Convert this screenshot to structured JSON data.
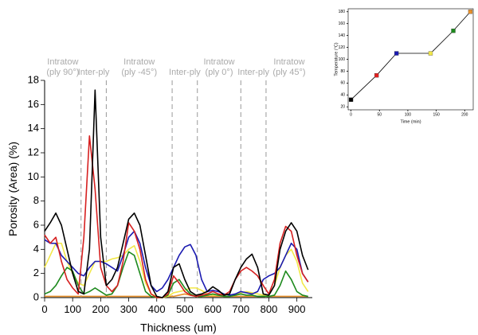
{
  "chart_data": [
    {
      "type": "line",
      "xlabel": "Thickness (um)",
      "ylabel": "Porosity (Area) (%)",
      "xlim": [
        0,
        955
      ],
      "ylim": [
        0,
        18
      ],
      "xticks": [
        0,
        100,
        200,
        300,
        400,
        500,
        600,
        700,
        800,
        900
      ],
      "yticks": [
        0,
        2,
        4,
        6,
        8,
        10,
        12,
        14,
        16,
        18
      ],
      "boundaries": [
        130,
        220,
        455,
        545,
        700,
        790
      ],
      "regions": [
        [
          "Intratow",
          "(ply 90°)"
        ],
        [
          "Inter-ply"
        ],
        [
          "Intratow",
          "(ply -45°)"
        ],
        [
          "Inter-ply"
        ],
        [
          "Intratow",
          "(ply 0°)"
        ],
        [
          "Inter-ply"
        ],
        [
          "Intratow",
          "(ply 45°)"
        ]
      ],
      "x": [
        0,
        20,
        40,
        60,
        80,
        100,
        120,
        140,
        160,
        180,
        200,
        220,
        240,
        260,
        280,
        300,
        320,
        340,
        360,
        380,
        400,
        420,
        440,
        460,
        480,
        500,
        520,
        540,
        560,
        580,
        600,
        620,
        640,
        660,
        680,
        700,
        720,
        740,
        760,
        780,
        800,
        820,
        840,
        860,
        880,
        900,
        920,
        940
      ],
      "series": [
        {
          "color": "#e8902a",
          "values": [
            0.1,
            0.1,
            0.1,
            0.1,
            0.1,
            0.1,
            0.1,
            0.1,
            0.1,
            0.1,
            0.1,
            0.1,
            0.1,
            0.1,
            0.1,
            0.1,
            0.1,
            0.1,
            0.1,
            0.1,
            0,
            0,
            0.1,
            0.1,
            0.2,
            0.3,
            0.2,
            0.1,
            0.1,
            0.1,
            0.1,
            0.1,
            0.1,
            0.1,
            0.1,
            0.1,
            0.1,
            0.1,
            0.1,
            0.1,
            0.1,
            0.1,
            0.1,
            0.1,
            0.1,
            0.1,
            0.1,
            0.1
          ]
        },
        {
          "color": "#f2e84a",
          "values": [
            2.5,
            3.5,
            4.5,
            4.5,
            3.0,
            2.0,
            1.2,
            1.0,
            2.0,
            3.0,
            3.0,
            3.0,
            3.2,
            3.3,
            3.5,
            4.0,
            4.3,
            3.0,
            1.2,
            0.3,
            0.1,
            0,
            0.1,
            0.4,
            0.5,
            0.6,
            0.8,
            0.8,
            0.6,
            0.3,
            0.2,
            0.2,
            0.1,
            0.1,
            0.2,
            0.4,
            0.5,
            0.4,
            0.3,
            0.2,
            0.2,
            1.0,
            2.5,
            3.5,
            4.0,
            3.0,
            1.2,
            0.5
          ]
        },
        {
          "color": "#1e8a1e",
          "values": [
            0.3,
            0.5,
            1.0,
            1.8,
            2.5,
            2.2,
            1.0,
            0.3,
            0.5,
            0.8,
            0.5,
            0.2,
            0.3,
            1.0,
            2.5,
            3.8,
            3.5,
            2.0,
            0.5,
            0.1,
            0,
            0,
            0.2,
            1.2,
            1.5,
            0.8,
            0.3,
            0.1,
            0.1,
            0.2,
            0.3,
            0.2,
            0.1,
            0.1,
            0.2,
            0.3,
            0.2,
            0.2,
            0.1,
            0.1,
            0.1,
            0.2,
            1.0,
            2.2,
            1.5,
            0.5,
            0.2,
            0.1
          ]
        },
        {
          "color": "#1a1ab0",
          "values": [
            4.8,
            4.5,
            4.5,
            3.5,
            3.0,
            2.5,
            2.0,
            1.8,
            2.5,
            3.0,
            3.0,
            2.8,
            2.5,
            2.2,
            3.5,
            5.0,
            5.5,
            4.5,
            2.5,
            1.0,
            0.5,
            0.8,
            1.5,
            2.5,
            3.5,
            4.2,
            4.4,
            3.5,
            1.5,
            0.5,
            0.6,
            0.5,
            0.3,
            0.2,
            0.3,
            0.5,
            0.4,
            0.3,
            0.5,
            1.5,
            1.8,
            2.0,
            2.5,
            3.5,
            4.5,
            4.0,
            2.0,
            1.3
          ]
        },
        {
          "color": "#d62020",
          "values": [
            5.2,
            4.5,
            5.0,
            3.0,
            1.5,
            0.8,
            0.3,
            5.0,
            13.4,
            9.0,
            2.5,
            1.0,
            0.5,
            1.0,
            3.0,
            6.2,
            5.5,
            4.0,
            1.5,
            0.3,
            0,
            0,
            0.3,
            1.8,
            1.2,
            0.5,
            0.2,
            0.1,
            0.2,
            0.3,
            0.5,
            0.3,
            0.2,
            0.5,
            1.5,
            2.2,
            2.5,
            2.2,
            1.8,
            1.0,
            0.3,
            1.5,
            4.5,
            5.9,
            5.5,
            3.5,
            2.0,
            1.3
          ]
        },
        {
          "color": "#000000",
          "values": [
            5.5,
            6.2,
            7.0,
            6.0,
            4.0,
            2.0,
            0.5,
            0.3,
            4.0,
            17.2,
            5.0,
            1.0,
            1.5,
            2.5,
            4.5,
            6.5,
            7.0,
            6.0,
            3.5,
            1.0,
            0.1,
            0,
            0.5,
            2.5,
            2.8,
            1.5,
            0.5,
            0.2,
            0.3,
            0.5,
            0.9,
            0.6,
            0.2,
            0.3,
            1.5,
            2.5,
            3.2,
            3.6,
            2.5,
            0.3,
            0.2,
            1.0,
            4.0,
            5.5,
            6.2,
            5.5,
            3.5,
            2.3
          ]
        }
      ]
    },
    {
      "type": "line",
      "xlabel": "Time (min)",
      "ylabel": "Temperature (°C)",
      "xlim": [
        -5,
        215
      ],
      "ylim": [
        15,
        185
      ],
      "xticks": [
        0,
        50,
        100,
        150,
        200
      ],
      "yticks": [
        20,
        40,
        60,
        80,
        100,
        120,
        140,
        160,
        180
      ],
      "x": [
        0,
        45,
        80,
        140,
        180,
        210
      ],
      "series": [
        {
          "color": "#000000",
          "values": [
            32,
            73,
            110,
            110,
            148,
            180
          ],
          "marker_colors": [
            "#000000",
            "#e02020",
            "#1a1ab0",
            "#f2e84a",
            "#1e8a1e",
            "#e8902a"
          ]
        }
      ]
    }
  ]
}
